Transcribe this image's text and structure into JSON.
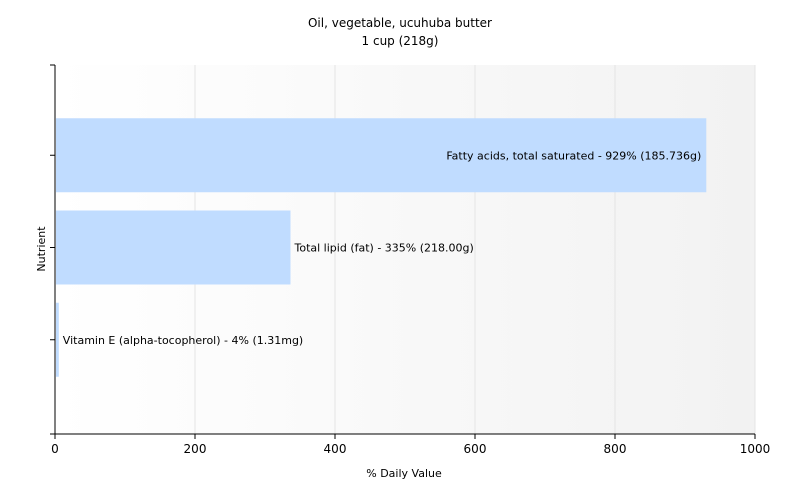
{
  "chart_data": {
    "type": "bar",
    "orientation": "horizontal",
    "title": "Oil, vegetable, ucuhuba butter",
    "subtitle": "1 cup (218g)",
    "xlabel": "% Daily Value",
    "ylabel": "Nutrient",
    "xlim": [
      0,
      1000
    ],
    "xticks": [
      0,
      200,
      400,
      600,
      800,
      1000
    ],
    "grid": true,
    "bar_color": "#c0dcff",
    "bars": [
      {
        "name": "Fatty acids, total saturated",
        "value": 929,
        "label": "Fatty acids, total saturated - 929% (185.736g)"
      },
      {
        "name": "Total lipid (fat)",
        "value": 335,
        "label": "Total lipid (fat) - 335% (218.00g)"
      },
      {
        "name": "Vitamin E (alpha-tocopherol)",
        "value": 4,
        "label": "Vitamin E (alpha-tocopherol) - 4% (1.31mg)"
      }
    ]
  }
}
